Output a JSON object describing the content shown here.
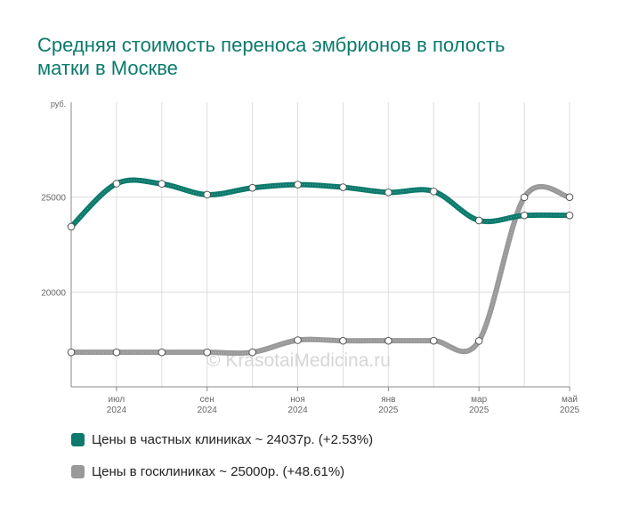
{
  "title": "Средняя стоимость переноса эмбрионов в полость матки в Москве",
  "watermark": "© KrasotaiMedicina.ru",
  "legend": [
    {
      "label": "Цены в частных клиниках ~ 24037р. (+2.53%)",
      "color": "#0b7a6c"
    },
    {
      "label": "Цены в госклиниках ~ 25000р. (+48.61%)",
      "color": "#999999"
    }
  ],
  "chart_data": {
    "type": "line",
    "title": "Средняя стоимость переноса эмбрионов в полость матки в Москве",
    "ylabel": "руб.",
    "ylim": [
      15000,
      30000
    ],
    "yticks": [
      20000,
      25000
    ],
    "x": [
      "2024-06",
      "2024-07",
      "2024-08",
      "2024-09",
      "2024-10",
      "2024-11",
      "2024-12",
      "2025-01",
      "2025-02",
      "2025-03",
      "2025-04",
      "2025-05"
    ],
    "xtick_labels": [
      {
        "index": 1,
        "month": "июл",
        "year": "2024"
      },
      {
        "index": 3,
        "month": "сен",
        "year": "2024"
      },
      {
        "index": 5,
        "month": "ноя",
        "year": "2024"
      },
      {
        "index": 7,
        "month": "янв",
        "year": "2025"
      },
      {
        "index": 9,
        "month": "мар",
        "year": "2025"
      },
      {
        "index": 11,
        "month": "май",
        "year": "2025"
      }
    ],
    "grid": true,
    "series": [
      {
        "name": "Цены в частных клиниках",
        "color": "#0b7a6c",
        "values": [
          23440,
          25710,
          25700,
          25130,
          25490,
          25660,
          25520,
          25250,
          25300,
          23770,
          24037,
          24037
        ]
      },
      {
        "name": "Цены в госклиниках",
        "color": "#999999",
        "values": [
          16820,
          16820,
          16820,
          16820,
          16820,
          17460,
          17430,
          17430,
          17430,
          17420,
          24990,
          25000
        ]
      }
    ]
  }
}
